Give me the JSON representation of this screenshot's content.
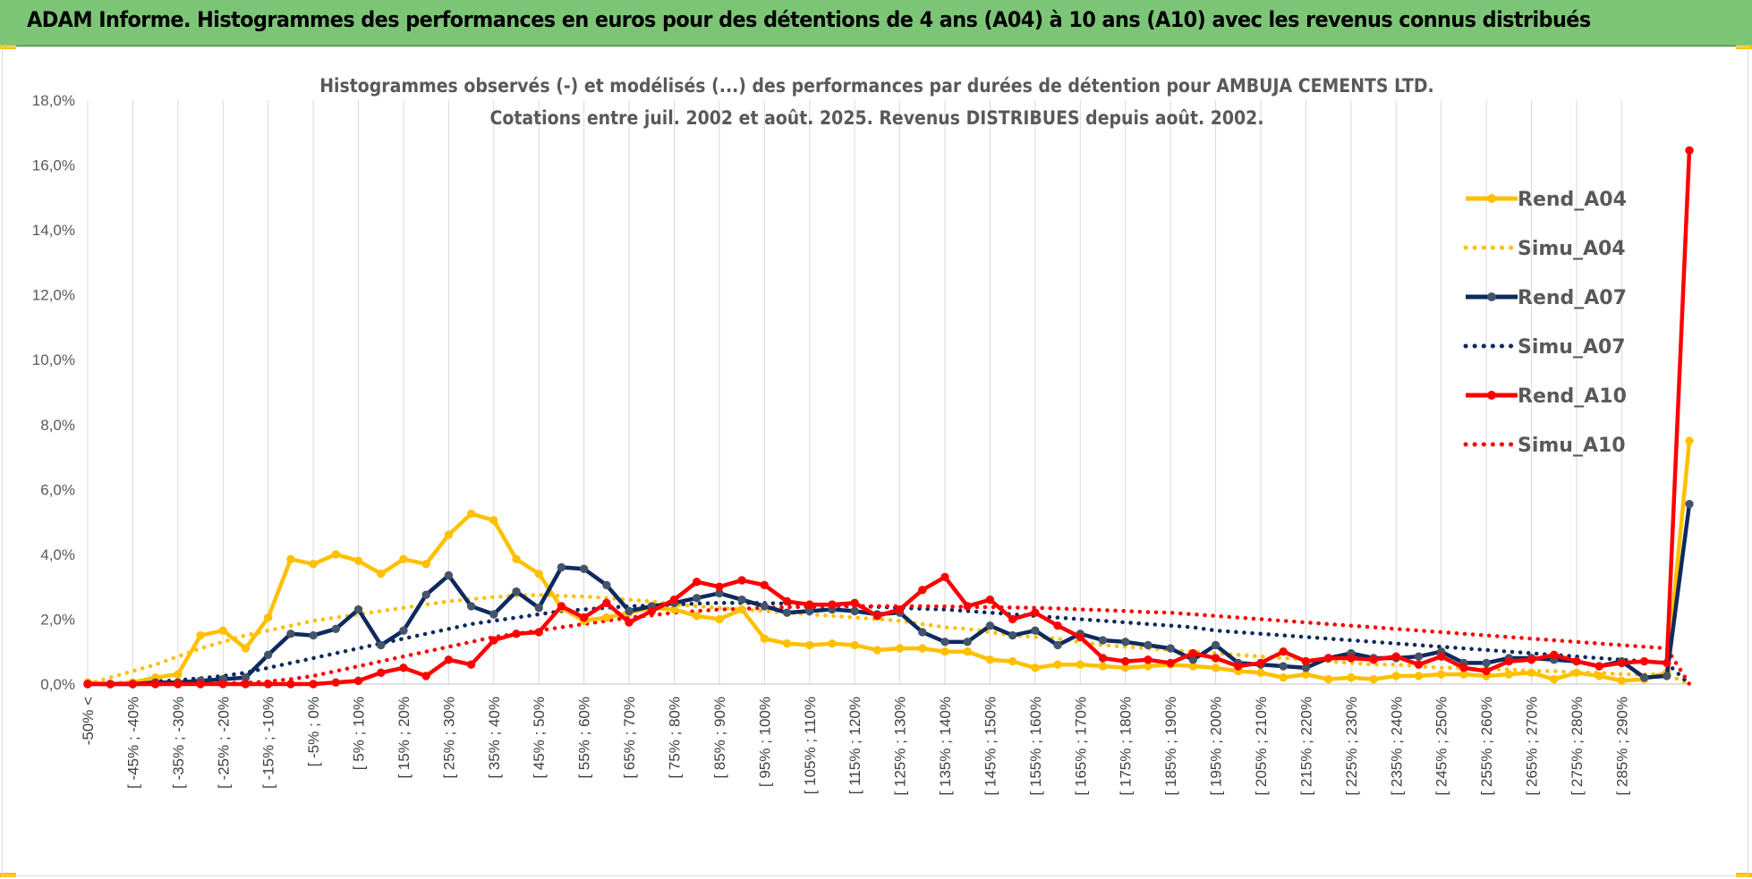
{
  "header": {
    "title": "ADAM Informe. Histogrammes des performances en euros pour des détentions de 4 ans (A04) à 10 ans (A10) avec les revenus connus distribués"
  },
  "colors": {
    "a04": "#FFC000",
    "a07": "#0E2A5E",
    "a07_marker": "#44546A",
    "a10": "#FF0000",
    "banner": "#7CC576"
  },
  "chart_data": {
    "type": "line",
    "title_lines": [
      "Histogrammes observés (-) et modélisés (...) des performances par durées de détention pour AMBUJA CEMENTS LTD.",
      "Cotations entre juil. 2002 et août. 2025. Revenus DISTRIBUES depuis août. 2002."
    ],
    "ylim": [
      0,
      18
    ],
    "y_ticks": [
      "0,0%",
      "2,0%",
      "4,0%",
      "6,0%",
      "8,0%",
      "10,0%",
      "12,0%",
      "14,0%",
      "16,0%",
      "18,0%"
    ],
    "x_labels": [
      "-50% <",
      "[ -45% ; -40%",
      "[ -35% ; -30%",
      "[ -25% ; -20%",
      "[ -15% ; -10%",
      "[ -5% ; 0%",
      "[ 5% ; 10%",
      "[ 15% ; 20%",
      "[ 25% ; 30%",
      "[ 35% ; 40%",
      "[ 45% ; 50%",
      "[ 55% ; 60%",
      "[ 65% ; 70%",
      "[ 75% ; 80%",
      "[ 85% ; 90%",
      "[ 95% ; 100%",
      "[ 105% ; 110%",
      "[ 115% ; 120%",
      "[ 125% ; 130%",
      "[ 135% ; 140%",
      "[ 145% ; 150%",
      "[ 155% ; 160%",
      "[ 165% ; 170%",
      "[ 175% ; 180%",
      "[ 185% ; 190%",
      "[ 195% ; 200%",
      "[ 205% ; 210%",
      "[ 215% ; 220%",
      "[ 225% ; 230%",
      "[ 235% ; 240%",
      "[ 245% ; 250%",
      "[ 255% ; 260%",
      "[ 265% ; 270%",
      "[ 275% ; 280%",
      "[ 285% ; 290%"
    ],
    "series": [
      {
        "name": "Rend_A04",
        "style": "solid",
        "color_key": "a04",
        "values": [
          0.05,
          0.0,
          0.05,
          0.2,
          0.3,
          1.5,
          1.65,
          1.1,
          2.05,
          3.85,
          3.7,
          4.0,
          3.8,
          3.4,
          3.85,
          3.7,
          4.6,
          5.25,
          5.05,
          3.85,
          3.4,
          2.35,
          1.95,
          2.05,
          2.2,
          2.35,
          2.3,
          2.1,
          2.0,
          2.3,
          1.4,
          1.25,
          1.2,
          1.25,
          1.2,
          1.05,
          1.1,
          1.1,
          1.0,
          1.0,
          0.75,
          0.7,
          0.5,
          0.6,
          0.6,
          0.55,
          0.5,
          0.55,
          0.6,
          0.55,
          0.5,
          0.4,
          0.35,
          0.2,
          0.3,
          0.15,
          0.2,
          0.15,
          0.25,
          0.25,
          0.3,
          0.3,
          0.25,
          0.3,
          0.35,
          0.15,
          0.35,
          0.25,
          0.1,
          0.15,
          0.35,
          7.5
        ]
      },
      {
        "name": "Simu_A04",
        "style": "dotted",
        "color_key": "a04",
        "values": [
          0.0,
          0.2,
          0.4,
          0.6,
          0.85,
          1.1,
          1.3,
          1.5,
          1.65,
          1.8,
          1.95,
          2.05,
          2.15,
          2.25,
          2.35,
          2.45,
          2.55,
          2.62,
          2.68,
          2.72,
          2.75,
          2.72,
          2.7,
          2.65,
          2.6,
          2.55,
          2.45,
          2.4,
          2.35,
          2.3,
          2.25,
          2.2,
          2.15,
          2.1,
          2.05,
          2.0,
          1.95,
          1.85,
          1.75,
          1.7,
          1.6,
          1.5,
          1.45,
          1.4,
          1.3,
          1.2,
          1.15,
          1.1,
          1.05,
          1.0,
          0.95,
          0.9,
          0.85,
          0.8,
          0.75,
          0.7,
          0.65,
          0.6,
          0.6,
          0.55,
          0.5,
          0.5,
          0.45,
          0.45,
          0.4,
          0.4,
          0.35,
          0.35,
          0.3,
          0.3,
          0.3,
          0.0
        ]
      },
      {
        "name": "Rend_A07",
        "style": "solid",
        "color_key": "a07",
        "values": [
          0.0,
          0.0,
          0.0,
          0.05,
          0.05,
          0.1,
          0.15,
          0.2,
          0.9,
          1.55,
          1.5,
          1.7,
          2.3,
          1.2,
          1.65,
          2.75,
          3.35,
          2.4,
          2.15,
          2.85,
          2.35,
          3.6,
          3.55,
          3.05,
          2.25,
          2.4,
          2.5,
          2.65,
          2.8,
          2.6,
          2.4,
          2.2,
          2.25,
          2.3,
          2.25,
          2.15,
          2.2,
          1.6,
          1.3,
          1.3,
          1.8,
          1.5,
          1.65,
          1.2,
          1.55,
          1.35,
          1.3,
          1.2,
          1.1,
          0.75,
          1.2,
          0.65,
          0.6,
          0.55,
          0.5,
          0.8,
          0.95,
          0.8,
          0.8,
          0.85,
          1.0,
          0.65,
          0.65,
          0.8,
          0.8,
          0.75,
          0.7,
          0.55,
          0.7,
          0.2,
          0.25,
          5.55
        ]
      },
      {
        "name": "Simu_A07",
        "style": "dotted",
        "color_key": "a07",
        "values": [
          0.0,
          0.02,
          0.05,
          0.08,
          0.12,
          0.18,
          0.25,
          0.35,
          0.5,
          0.65,
          0.8,
          0.95,
          1.1,
          1.25,
          1.4,
          1.55,
          1.7,
          1.85,
          1.95,
          2.05,
          2.15,
          2.25,
          2.3,
          2.35,
          2.4,
          2.42,
          2.45,
          2.48,
          2.5,
          2.5,
          2.5,
          2.48,
          2.45,
          2.42,
          2.4,
          2.38,
          2.35,
          2.32,
          2.3,
          2.25,
          2.2,
          2.15,
          2.1,
          2.05,
          2.0,
          1.95,
          1.9,
          1.85,
          1.8,
          1.75,
          1.65,
          1.6,
          1.55,
          1.5,
          1.45,
          1.4,
          1.35,
          1.3,
          1.25,
          1.2,
          1.15,
          1.1,
          1.05,
          1.0,
          0.95,
          0.9,
          0.85,
          0.8,
          0.75,
          0.7,
          0.65,
          0.0
        ]
      },
      {
        "name": "Rend_A10",
        "style": "solid",
        "color_key": "a10",
        "values": [
          0.0,
          0.0,
          0.0,
          0.0,
          0.0,
          0.0,
          0.0,
          0.0,
          0.0,
          0.0,
          0.0,
          0.05,
          0.1,
          0.35,
          0.5,
          0.25,
          0.75,
          0.6,
          1.35,
          1.55,
          1.6,
          2.4,
          2.05,
          2.5,
          1.9,
          2.25,
          2.6,
          3.15,
          3.0,
          3.2,
          3.05,
          2.55,
          2.45,
          2.45,
          2.5,
          2.1,
          2.3,
          2.9,
          3.3,
          2.4,
          2.6,
          2.0,
          2.2,
          1.8,
          1.45,
          0.8,
          0.7,
          0.75,
          0.65,
          0.95,
          0.8,
          0.55,
          0.65,
          1.0,
          0.7,
          0.8,
          0.8,
          0.75,
          0.85,
          0.6,
          0.85,
          0.5,
          0.4,
          0.7,
          0.75,
          0.9,
          0.7,
          0.55,
          0.65,
          0.7,
          0.65,
          16.45
        ]
      },
      {
        "name": "Simu_A10",
        "style": "dotted",
        "color_key": "a10",
        "values": [
          0.0,
          0.0,
          0.0,
          0.0,
          0.0,
          0.01,
          0.02,
          0.04,
          0.08,
          0.15,
          0.25,
          0.4,
          0.55,
          0.7,
          0.85,
          1.0,
          1.15,
          1.3,
          1.45,
          1.55,
          1.65,
          1.75,
          1.85,
          1.95,
          2.05,
          2.12,
          2.2,
          2.25,
          2.3,
          2.32,
          2.35,
          2.37,
          2.38,
          2.39,
          2.4,
          2.4,
          2.4,
          2.4,
          2.39,
          2.38,
          2.37,
          2.36,
          2.35,
          2.33,
          2.3,
          2.28,
          2.25,
          2.22,
          2.2,
          2.15,
          2.1,
          2.05,
          2.0,
          1.95,
          1.9,
          1.85,
          1.8,
          1.75,
          1.7,
          1.65,
          1.6,
          1.55,
          1.5,
          1.45,
          1.4,
          1.35,
          1.3,
          1.25,
          1.2,
          1.15,
          1.1,
          0.0
        ]
      }
    ],
    "legend_position": "top-right",
    "grid": "vertical"
  }
}
